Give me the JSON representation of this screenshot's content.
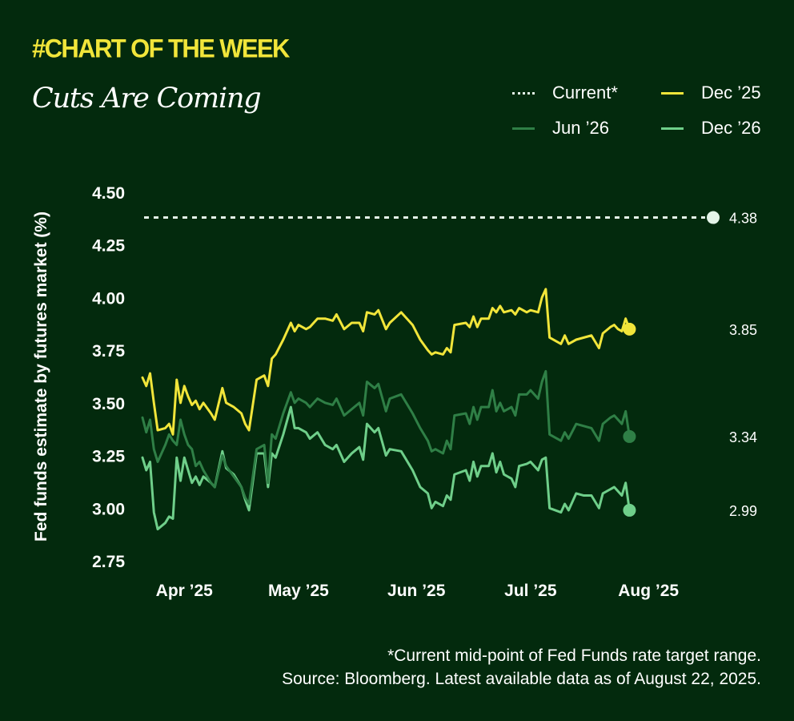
{
  "header": {
    "kicker": "#CHART OF THE WEEK",
    "title": "Cuts Are Coming"
  },
  "legend": [
    {
      "label": "Current*",
      "key": "current"
    },
    {
      "label": "Dec ’25",
      "key": "dec25"
    },
    {
      "label": "Jun ’26",
      "key": "jun26"
    },
    {
      "label": "Dec ’26",
      "key": "dec26"
    }
  ],
  "colors": {
    "background": "#032a0d",
    "current": "#e4f4e8",
    "dec25": "#f1e53a",
    "jun26": "#2f7f46",
    "dec26": "#6fcf8a"
  },
  "footnote": {
    "line1": "*Current mid-point of Fed Funds rate target range.",
    "line2": "Source: Bloomberg. Latest available data as of August 22, 2025."
  },
  "chart_data": {
    "type": "line",
    "title": "Cuts Are Coming",
    "xlabel": "",
    "ylabel": "Fed funds estimate by futures market (%)",
    "ylim": [
      2.75,
      4.5
    ],
    "yticks": [
      "4.50",
      "4.25",
      "4.00",
      "3.75",
      "3.50",
      "3.25",
      "3.00",
      "2.75"
    ],
    "xlim": [
      0,
      150
    ],
    "x_ticks": [
      {
        "label": "Apr ’25",
        "x": 11
      },
      {
        "label": "May ’25",
        "x": 41
      },
      {
        "label": "Jun ’25",
        "x": 72
      },
      {
        "label": "Jul ’25",
        "x": 102
      },
      {
        "label": "Aug ’25",
        "x": 133
      }
    ],
    "grid": false,
    "legend_position": "top-right",
    "current": {
      "name": "Current*",
      "value": 4.38,
      "label": "4.38"
    },
    "series": [
      {
        "name": "Dec ’25",
        "key": "dec25",
        "end_label": "3.85",
        "points": [
          [
            0,
            3.62
          ],
          [
            1,
            3.58
          ],
          [
            2,
            3.64
          ],
          [
            3,
            3.5
          ],
          [
            4,
            3.37
          ],
          [
            6,
            3.38
          ],
          [
            7,
            3.4
          ],
          [
            8,
            3.35
          ],
          [
            9,
            3.61
          ],
          [
            10,
            3.5
          ],
          [
            11,
            3.58
          ],
          [
            12,
            3.53
          ],
          [
            13,
            3.49
          ],
          [
            14,
            3.51
          ],
          [
            15,
            3.47
          ],
          [
            16,
            3.5
          ],
          [
            18,
            3.45
          ],
          [
            19,
            3.42
          ],
          [
            21,
            3.57
          ],
          [
            22,
            3.5
          ],
          [
            24,
            3.48
          ],
          [
            26,
            3.45
          ],
          [
            27,
            3.4
          ],
          [
            28,
            3.37
          ],
          [
            30,
            3.61
          ],
          [
            32,
            3.63
          ],
          [
            33,
            3.58
          ],
          [
            34,
            3.71
          ],
          [
            35,
            3.73
          ],
          [
            37,
            3.8
          ],
          [
            39,
            3.88
          ],
          [
            40,
            3.84
          ],
          [
            41,
            3.87
          ],
          [
            43,
            3.85
          ],
          [
            44,
            3.86
          ],
          [
            46,
            3.9
          ],
          [
            48,
            3.9
          ],
          [
            50,
            3.89
          ],
          [
            51,
            3.92
          ],
          [
            53,
            3.85
          ],
          [
            55,
            3.88
          ],
          [
            57,
            3.88
          ],
          [
            58,
            3.84
          ],
          [
            59,
            3.93
          ],
          [
            61,
            3.92
          ],
          [
            62,
            3.94
          ],
          [
            64,
            3.85
          ],
          [
            65,
            3.88
          ],
          [
            68,
            3.93
          ],
          [
            71,
            3.87
          ],
          [
            73,
            3.8
          ],
          [
            75,
            3.75
          ],
          [
            76,
            3.73
          ],
          [
            77,
            3.74
          ],
          [
            79,
            3.73
          ],
          [
            80,
            3.76
          ],
          [
            81,
            3.74
          ],
          [
            82,
            3.87
          ],
          [
            85,
            3.88
          ],
          [
            86,
            3.86
          ],
          [
            87,
            3.91
          ],
          [
            88,
            3.86
          ],
          [
            89,
            3.9
          ],
          [
            91,
            3.9
          ],
          [
            92,
            3.95
          ],
          [
            93,
            3.93
          ],
          [
            94,
            3.96
          ],
          [
            95,
            3.93
          ],
          [
            97,
            3.94
          ],
          [
            98,
            3.92
          ],
          [
            99,
            3.95
          ],
          [
            101,
            3.93
          ],
          [
            102,
            3.94
          ],
          [
            104,
            3.93
          ],
          [
            105,
            4.0
          ],
          [
            106,
            4.04
          ],
          [
            107,
            3.81
          ],
          [
            110,
            3.78
          ],
          [
            111,
            3.82
          ],
          [
            112,
            3.78
          ],
          [
            114,
            3.8
          ],
          [
            116,
            3.81
          ],
          [
            118,
            3.82
          ],
          [
            120,
            3.76
          ],
          [
            121,
            3.83
          ],
          [
            123,
            3.86
          ],
          [
            124,
            3.87
          ],
          [
            125,
            3.85
          ],
          [
            126,
            3.84
          ],
          [
            127,
            3.9
          ],
          [
            128,
            3.85
          ]
        ]
      },
      {
        "name": "Jun ’26",
        "key": "jun26",
        "end_label": "3.34",
        "points": [
          [
            0,
            3.43
          ],
          [
            1,
            3.36
          ],
          [
            2,
            3.42
          ],
          [
            3,
            3.28
          ],
          [
            4,
            3.22
          ],
          [
            6,
            3.3
          ],
          [
            7,
            3.35
          ],
          [
            8,
            3.32
          ],
          [
            9,
            3.3
          ],
          [
            10,
            3.42
          ],
          [
            11,
            3.35
          ],
          [
            12,
            3.3
          ],
          [
            13,
            3.28
          ],
          [
            14,
            3.2
          ],
          [
            15,
            3.22
          ],
          [
            16,
            3.18
          ],
          [
            18,
            3.12
          ],
          [
            19,
            3.1
          ],
          [
            21,
            3.25
          ],
          [
            22,
            3.2
          ],
          [
            24,
            3.15
          ],
          [
            26,
            3.1
          ],
          [
            27,
            3.05
          ],
          [
            28,
            3.02
          ],
          [
            30,
            3.28
          ],
          [
            32,
            3.3
          ],
          [
            33,
            3.12
          ],
          [
            34,
            3.35
          ],
          [
            35,
            3.33
          ],
          [
            37,
            3.45
          ],
          [
            39,
            3.55
          ],
          [
            40,
            3.5
          ],
          [
            41,
            3.52
          ],
          [
            43,
            3.5
          ],
          [
            44,
            3.48
          ],
          [
            46,
            3.52
          ],
          [
            48,
            3.5
          ],
          [
            50,
            3.49
          ],
          [
            51,
            3.52
          ],
          [
            53,
            3.44
          ],
          [
            55,
            3.47
          ],
          [
            57,
            3.5
          ],
          [
            58,
            3.44
          ],
          [
            59,
            3.6
          ],
          [
            61,
            3.57
          ],
          [
            62,
            3.59
          ],
          [
            64,
            3.46
          ],
          [
            65,
            3.52
          ],
          [
            68,
            3.54
          ],
          [
            71,
            3.45
          ],
          [
            73,
            3.38
          ],
          [
            75,
            3.32
          ],
          [
            76,
            3.27
          ],
          [
            77,
            3.28
          ],
          [
            79,
            3.26
          ],
          [
            80,
            3.32
          ],
          [
            81,
            3.28
          ],
          [
            82,
            3.44
          ],
          [
            85,
            3.45
          ],
          [
            86,
            3.4
          ],
          [
            87,
            3.48
          ],
          [
            88,
            3.42
          ],
          [
            89,
            3.48
          ],
          [
            91,
            3.48
          ],
          [
            92,
            3.56
          ],
          [
            93,
            3.46
          ],
          [
            94,
            3.5
          ],
          [
            95,
            3.46
          ],
          [
            97,
            3.48
          ],
          [
            98,
            3.44
          ],
          [
            99,
            3.54
          ],
          [
            101,
            3.54
          ],
          [
            102,
            3.56
          ],
          [
            104,
            3.52
          ],
          [
            105,
            3.6
          ],
          [
            106,
            3.65
          ],
          [
            107,
            3.35
          ],
          [
            110,
            3.32
          ],
          [
            111,
            3.36
          ],
          [
            112,
            3.33
          ],
          [
            114,
            3.4
          ],
          [
            116,
            3.39
          ],
          [
            118,
            3.38
          ],
          [
            120,
            3.32
          ],
          [
            121,
            3.4
          ],
          [
            123,
            3.43
          ],
          [
            124,
            3.44
          ],
          [
            125,
            3.42
          ],
          [
            126,
            3.4
          ],
          [
            127,
            3.46
          ],
          [
            128,
            3.34
          ]
        ]
      },
      {
        "name": "Dec ’26",
        "key": "dec26",
        "end_label": "2.99",
        "points": [
          [
            0,
            3.24
          ],
          [
            1,
            3.18
          ],
          [
            2,
            3.22
          ],
          [
            3,
            2.98
          ],
          [
            4,
            2.9
          ],
          [
            6,
            2.93
          ],
          [
            7,
            2.96
          ],
          [
            8,
            2.95
          ],
          [
            9,
            3.24
          ],
          [
            10,
            3.13
          ],
          [
            11,
            3.24
          ],
          [
            12,
            3.18
          ],
          [
            13,
            3.12
          ],
          [
            14,
            3.15
          ],
          [
            15,
            3.11
          ],
          [
            16,
            3.15
          ],
          [
            18,
            3.12
          ],
          [
            19,
            3.1
          ],
          [
            21,
            3.27
          ],
          [
            22,
            3.19
          ],
          [
            24,
            3.16
          ],
          [
            26,
            3.1
          ],
          [
            27,
            3.04
          ],
          [
            28,
            2.99
          ],
          [
            30,
            3.26
          ],
          [
            32,
            3.26
          ],
          [
            33,
            3.1
          ],
          [
            34,
            3.26
          ],
          [
            35,
            3.24
          ],
          [
            37,
            3.35
          ],
          [
            39,
            3.48
          ],
          [
            40,
            3.38
          ],
          [
            41,
            3.38
          ],
          [
            43,
            3.36
          ],
          [
            44,
            3.33
          ],
          [
            46,
            3.36
          ],
          [
            48,
            3.3
          ],
          [
            50,
            3.28
          ],
          [
            51,
            3.3
          ],
          [
            53,
            3.22
          ],
          [
            55,
            3.26
          ],
          [
            57,
            3.29
          ],
          [
            58,
            3.23
          ],
          [
            59,
            3.4
          ],
          [
            61,
            3.36
          ],
          [
            62,
            3.38
          ],
          [
            64,
            3.25
          ],
          [
            65,
            3.28
          ],
          [
            68,
            3.27
          ],
          [
            71,
            3.18
          ],
          [
            73,
            3.1
          ],
          [
            75,
            3.07
          ],
          [
            76,
            3.0
          ],
          [
            77,
            3.03
          ],
          [
            79,
            3.01
          ],
          [
            80,
            3.06
          ],
          [
            81,
            3.04
          ],
          [
            82,
            3.16
          ],
          [
            85,
            3.18
          ],
          [
            86,
            3.13
          ],
          [
            87,
            3.22
          ],
          [
            88,
            3.15
          ],
          [
            89,
            3.2
          ],
          [
            91,
            3.2
          ],
          [
            92,
            3.26
          ],
          [
            93,
            3.17
          ],
          [
            94,
            3.22
          ],
          [
            95,
            3.16
          ],
          [
            97,
            3.14
          ],
          [
            98,
            3.1
          ],
          [
            99,
            3.2
          ],
          [
            101,
            3.21
          ],
          [
            102,
            3.22
          ],
          [
            104,
            3.18
          ],
          [
            105,
            3.23
          ],
          [
            106,
            3.24
          ],
          [
            107,
            3.0
          ],
          [
            110,
            2.98
          ],
          [
            111,
            3.02
          ],
          [
            112,
            2.99
          ],
          [
            114,
            3.07
          ],
          [
            116,
            3.06
          ],
          [
            118,
            3.06
          ],
          [
            120,
            3.0
          ],
          [
            121,
            3.07
          ],
          [
            123,
            3.09
          ],
          [
            124,
            3.1
          ],
          [
            125,
            3.08
          ],
          [
            126,
            3.06
          ],
          [
            127,
            3.12
          ],
          [
            128,
            2.99
          ]
        ]
      }
    ]
  }
}
